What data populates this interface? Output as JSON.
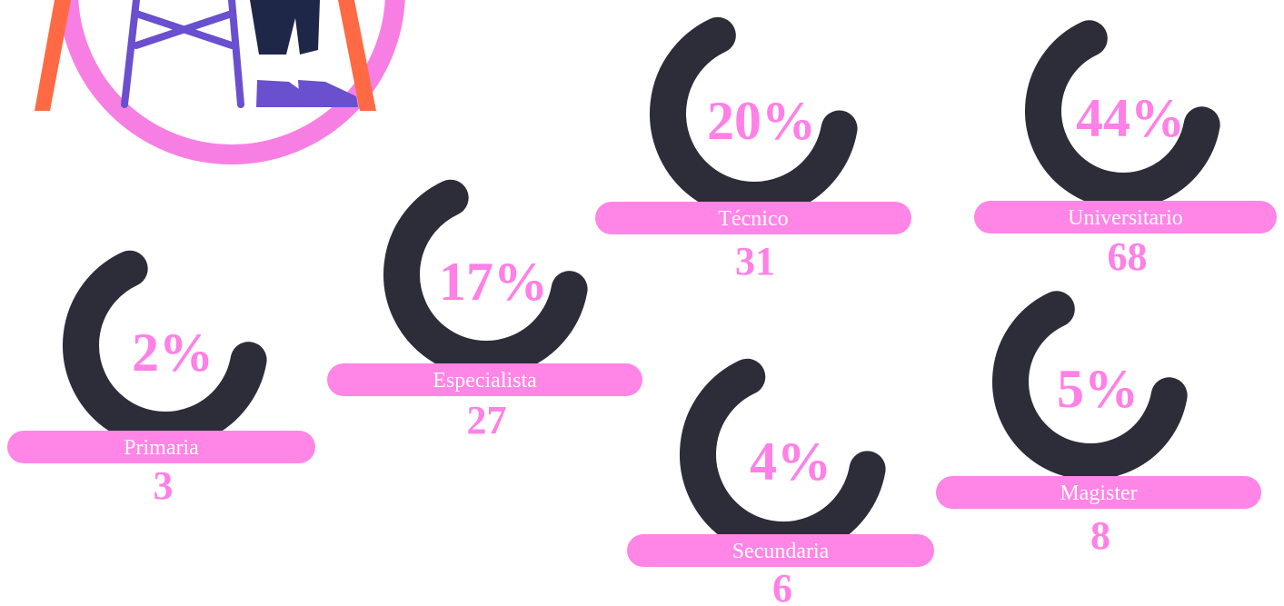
{
  "items": [
    {
      "percent": "20%",
      "label": "Técnico",
      "count": 31
    },
    {
      "percent": "44%",
      "label": "Universitario",
      "count": 68
    },
    {
      "percent": "17%",
      "label": "Especialista",
      "count": 27
    },
    {
      "percent": "2%",
      "label": "Primaria",
      "count": 3
    },
    {
      "percent": "4%",
      "label": "Secundaria",
      "count": 6
    },
    {
      "percent": "5%",
      "label": "Magister",
      "count": 8
    }
  ]
}
